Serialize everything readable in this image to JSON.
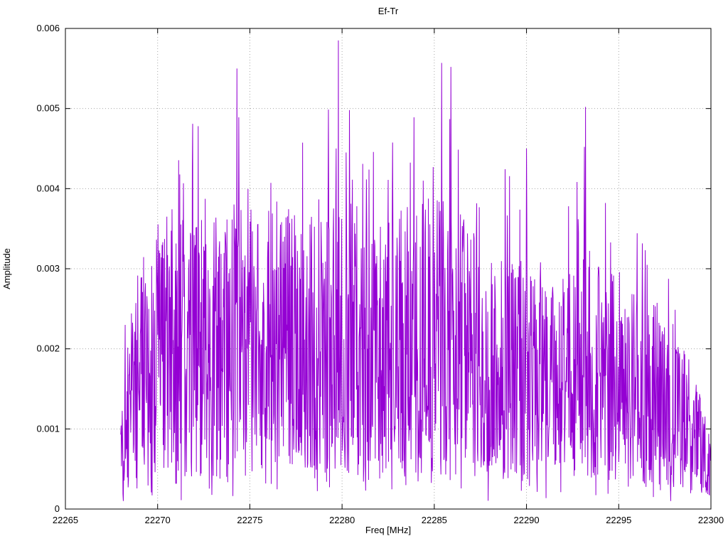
{
  "chart": {
    "title": "Ef-Tr",
    "xlabel": "Freq [MHz]",
    "ylabel": "Amplitude"
  },
  "chart_data": {
    "type": "line",
    "title": "Ef-Tr",
    "xlabel": "Freq [MHz]",
    "ylabel": "Amplitude",
    "xlim": [
      22265,
      22300
    ],
    "ylim": [
      0,
      0.006
    ],
    "x_ticks": [
      22265,
      22270,
      22275,
      22280,
      22285,
      22290,
      22295,
      22300
    ],
    "y_ticks": [
      0,
      0.001,
      0.002,
      0.003,
      0.004,
      0.005,
      0.006
    ],
    "grid": true,
    "legend": "none",
    "line_color": "#9400d3",
    "signal_span": [
      22268,
      22300
    ],
    "sample_step_mhz": 0.02,
    "noise_seed": 42,
    "spike_probability": 0.06,
    "dip_probability": 0.08,
    "envelope_x_mean_max": [
      [
        22268.0,
        0.0008,
        0.0027
      ],
      [
        22268.5,
        0.0013,
        0.0026
      ],
      [
        22269.0,
        0.0017,
        0.0032
      ],
      [
        22270.0,
        0.002,
        0.0043
      ],
      [
        22271.0,
        0.0021,
        0.0048
      ],
      [
        22272.0,
        0.002,
        0.0048
      ],
      [
        22273.0,
        0.0018,
        0.0035
      ],
      [
        22274.0,
        0.0022,
        0.0055
      ],
      [
        22275.0,
        0.002,
        0.0046
      ],
      [
        22276.0,
        0.0022,
        0.0048
      ],
      [
        22277.0,
        0.0021,
        0.0044
      ],
      [
        22278.0,
        0.0021,
        0.0048
      ],
      [
        22279.0,
        0.0022,
        0.005
      ],
      [
        22280.0,
        0.0022,
        0.005
      ],
      [
        22281.0,
        0.0021,
        0.0049
      ],
      [
        22282.0,
        0.002,
        0.0044
      ],
      [
        22283.0,
        0.0021,
        0.0049
      ],
      [
        22284.0,
        0.0021,
        0.0047
      ],
      [
        22285.0,
        0.0022,
        0.0056
      ],
      [
        22286.0,
        0.0021,
        0.0055
      ],
      [
        22287.0,
        0.002,
        0.004
      ],
      [
        22288.0,
        0.0018,
        0.0037
      ],
      [
        22289.0,
        0.0018,
        0.0045
      ],
      [
        22290.0,
        0.0017,
        0.0036
      ],
      [
        22291.0,
        0.0016,
        0.0035
      ],
      [
        22292.0,
        0.0016,
        0.0037
      ],
      [
        22293.0,
        0.0019,
        0.005
      ],
      [
        22294.0,
        0.0017,
        0.0042
      ],
      [
        22295.0,
        0.0016,
        0.0031
      ],
      [
        22296.0,
        0.0015,
        0.0036
      ],
      [
        22297.0,
        0.0015,
        0.0031
      ],
      [
        22298.0,
        0.0013,
        0.0028
      ],
      [
        22299.0,
        0.001,
        0.002
      ],
      [
        22299.6,
        0.0007,
        0.0012
      ],
      [
        22300.0,
        0.0005,
        0.001
      ]
    ],
    "notable_peaks": [
      {
        "x": 22279.8,
        "y": 0.00585
      },
      {
        "x": 22285.4,
        "y": 0.00557
      },
      {
        "x": 22285.9,
        "y": 0.00552
      },
      {
        "x": 22274.3,
        "y": 0.0055
      },
      {
        "x": 22293.2,
        "y": 0.00502
      },
      {
        "x": 22280.4,
        "y": 0.00498
      },
      {
        "x": 22274.4,
        "y": 0.00489
      },
      {
        "x": 22283.9,
        "y": 0.00489
      },
      {
        "x": 22271.9,
        "y": 0.00481
      },
      {
        "x": 22272.2,
        "y": 0.00478
      },
      {
        "x": 22290.0,
        "y": 0.0045
      },
      {
        "x": 22284.4,
        "y": 0.0041
      }
    ]
  },
  "layout_values": {
    "y_tick_labels": [
      "0",
      "0.001",
      "0.002",
      "0.003",
      "0.004",
      "0.005",
      "0.006"
    ],
    "x_tick_labels": [
      "22265",
      "22270",
      "22275",
      "22280",
      "22285",
      "22290",
      "22295",
      "22300"
    ]
  }
}
